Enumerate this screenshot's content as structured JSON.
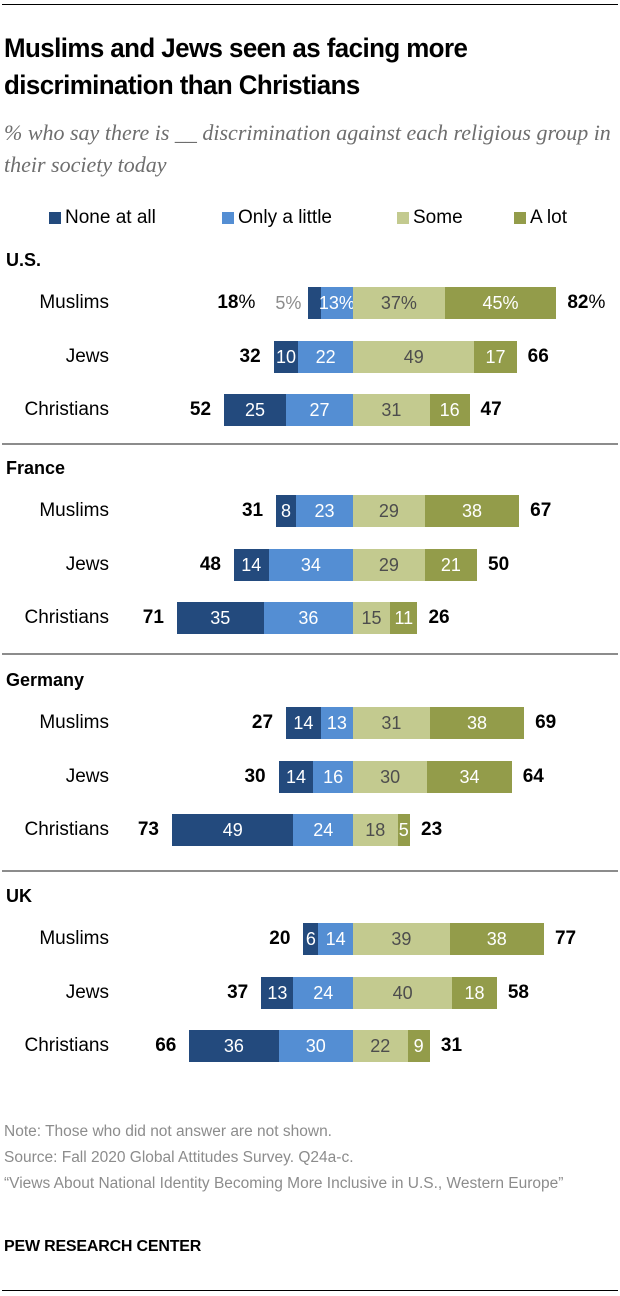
{
  "title": "Muslims and Jews seen as facing more discrimination than Christians",
  "subtitle": "% who say there is __ discrimination against each religious group in their society today",
  "legend": [
    {
      "label": "None at all",
      "color": "#234a7d"
    },
    {
      "label": "Only a little",
      "color": "#548ed3"
    },
    {
      "label": "Some",
      "color": "#c3ca8f"
    },
    {
      "label": "A lot",
      "color": "#939c4a"
    }
  ],
  "sections": [
    {
      "title": "U.S.",
      "rows": [
        {
          "label": "Muslims",
          "none": "5%",
          "little": "13%",
          "some": "37%",
          "alot": "45%",
          "net_left": "18",
          "net_right": "82",
          "pct": "%"
        },
        {
          "label": "Jews",
          "none": "10",
          "little": "22",
          "some": "49",
          "alot": "17",
          "net_left": "32",
          "net_right": "66"
        },
        {
          "label": "Christians",
          "none": "25",
          "little": "27",
          "some": "31",
          "alot": "16",
          "net_left": "52",
          "net_right": "47"
        }
      ]
    },
    {
      "title": "France",
      "rows": [
        {
          "label": "Muslims",
          "none": "8",
          "little": "23",
          "some": "29",
          "alot": "38",
          "net_left": "31",
          "net_right": "67"
        },
        {
          "label": "Jews",
          "none": "14",
          "little": "34",
          "some": "29",
          "alot": "21",
          "net_left": "48",
          "net_right": "50"
        },
        {
          "label": "Christians",
          "none": "35",
          "little": "36",
          "some": "15",
          "alot": "11",
          "net_left": "71",
          "net_right": "26"
        }
      ]
    },
    {
      "title": "Germany",
      "rows": [
        {
          "label": "Muslims",
          "none": "14",
          "little": "13",
          "some": "31",
          "alot": "38",
          "net_left": "27",
          "net_right": "69"
        },
        {
          "label": "Jews",
          "none": "14",
          "little": "16",
          "some": "30",
          "alot": "34",
          "net_left": "30",
          "net_right": "64"
        },
        {
          "label": "Christians",
          "none": "49",
          "little": "24",
          "some": "18",
          "alot": "5",
          "net_left": "73",
          "net_right": "23"
        }
      ]
    },
    {
      "title": "UK",
      "rows": [
        {
          "label": "Muslims",
          "none": "6",
          "little": "14",
          "some": "39",
          "alot": "38",
          "net_left": "20",
          "net_right": "77"
        },
        {
          "label": "Jews",
          "none": "13",
          "little": "24",
          "some": "40",
          "alot": "18",
          "net_left": "37",
          "net_right": "58"
        },
        {
          "label": "Christians",
          "none": "36",
          "little": "30",
          "some": "22",
          "alot": "9",
          "net_left": "66",
          "net_right": "31"
        }
      ]
    }
  ],
  "notes": {
    "note": "Note: Those who did not answer are not shown.",
    "source": "Source: Fall 2020 Global Attitudes Survey. Q24a-c.",
    "report": "“Views About National Identity Becoming More Inclusive in U.S., Western Europe”"
  },
  "brand": "PEW RESEARCH CENTER",
  "chart_data": {
    "type": "bar",
    "orientation": "horizontal diverging stacked",
    "title": "Muslims and Jews seen as facing more discrimination than Christians",
    "subtitle": "% who say there is __ discrimination against each religious group in their society today",
    "legend": [
      "None at all",
      "Only a little",
      "Some",
      "A lot"
    ],
    "legend_position": "top",
    "grid": false,
    "categories": [
      "U.S. - Muslims",
      "U.S. - Jews",
      "U.S. - Christians",
      "France - Muslims",
      "France - Jews",
      "France - Christians",
      "Germany - Muslims",
      "Germany - Jews",
      "Germany - Christians",
      "UK - Muslims",
      "UK - Jews",
      "UK - Christians"
    ],
    "series": [
      {
        "name": "None at all",
        "values": [
          5,
          10,
          25,
          8,
          14,
          35,
          14,
          14,
          49,
          6,
          13,
          36
        ]
      },
      {
        "name": "Only a little",
        "values": [
          13,
          22,
          27,
          23,
          34,
          36,
          13,
          16,
          24,
          14,
          24,
          30
        ]
      },
      {
        "name": "Some",
        "values": [
          37,
          49,
          31,
          29,
          29,
          15,
          31,
          30,
          18,
          39,
          40,
          22
        ]
      },
      {
        "name": "A lot",
        "values": [
          45,
          17,
          16,
          38,
          21,
          11,
          38,
          34,
          5,
          38,
          18,
          9
        ]
      }
    ],
    "net_not_much": [
      18,
      32,
      52,
      31,
      48,
      71,
      27,
      30,
      73,
      20,
      37,
      66
    ],
    "net_some_or_a_lot": [
      82,
      66,
      47,
      67,
      50,
      26,
      69,
      64,
      23,
      77,
      58,
      31
    ],
    "xlabel": "",
    "ylabel": ""
  }
}
